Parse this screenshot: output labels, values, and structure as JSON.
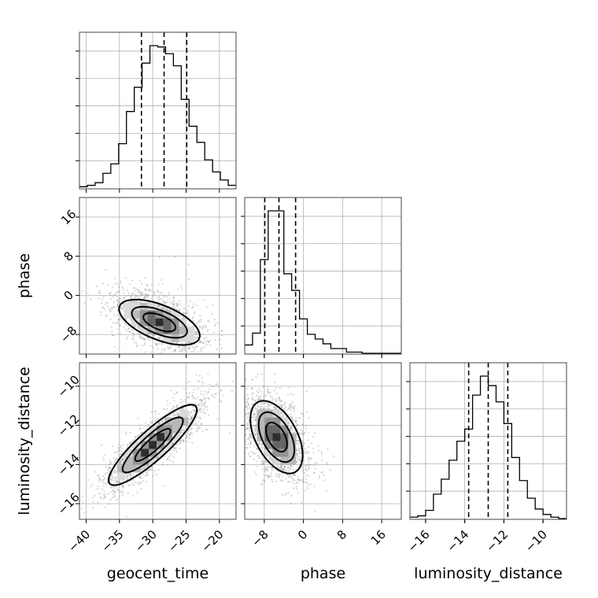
{
  "chart_data": {
    "type": "corner",
    "parameters": [
      {
        "name": "geocent_time",
        "label": "geocent_time",
        "range": [
          -41,
          -17.5
        ],
        "ticks": [
          -40,
          -35,
          -30,
          -25,
          -20
        ],
        "tick_labels": [
          "−40",
          "−35",
          "−30",
          "−25",
          "−20"
        ],
        "quantiles": [
          -31.7,
          -28.3,
          -24.9
        ],
        "hist_counts": [
          1,
          2,
          4,
          11,
          18,
          33,
          57,
          75,
          93,
          106,
          105,
          100,
          91,
          66,
          46,
          34,
          21,
          12,
          6,
          2
        ]
      },
      {
        "name": "phase",
        "label": "phase",
        "range": [
          -12,
          20
        ],
        "ticks": [
          -8,
          0,
          8,
          16
        ],
        "tick_labels": [
          "−8",
          "0",
          "8",
          "16"
        ],
        "quantiles": [
          -7.9,
          -5.0,
          -1.6
        ],
        "hist_counts": [
          7,
          17,
          79,
          120,
          120,
          67,
          53,
          29,
          16,
          12,
          8,
          4,
          4,
          1,
          1,
          0,
          0,
          0,
          0,
          0
        ]
      },
      {
        "name": "luminosity_distance",
        "label": "luminosity_distance",
        "range": [
          -16.8,
          -8.8
        ],
        "ticks": [
          -16,
          -14,
          -12,
          -10
        ],
        "tick_labels": [
          "−16",
          "−14",
          "−12",
          "−10"
        ],
        "quantiles": [
          -13.8,
          -12.8,
          -11.8
        ],
        "hist_counts": [
          1,
          2,
          6,
          18,
          29,
          43,
          57,
          66,
          91,
          105,
          98,
          86,
          70,
          45,
          28,
          15,
          7,
          3,
          1,
          0
        ]
      }
    ],
    "pairs": [
      {
        "x": "geocent_time",
        "y": "phase",
        "peak": [
          -29,
          -5.5
        ],
        "correlation": -0.45
      },
      {
        "x": "geocent_time",
        "y": "luminosity_distance",
        "peak": [
          -30,
          -13
        ],
        "correlation": 0.92
      },
      {
        "x": "phase",
        "y": "luminosity_distance",
        "peak": [
          -5.5,
          -12.6
        ],
        "correlation": -0.5
      }
    ],
    "grid": true
  }
}
